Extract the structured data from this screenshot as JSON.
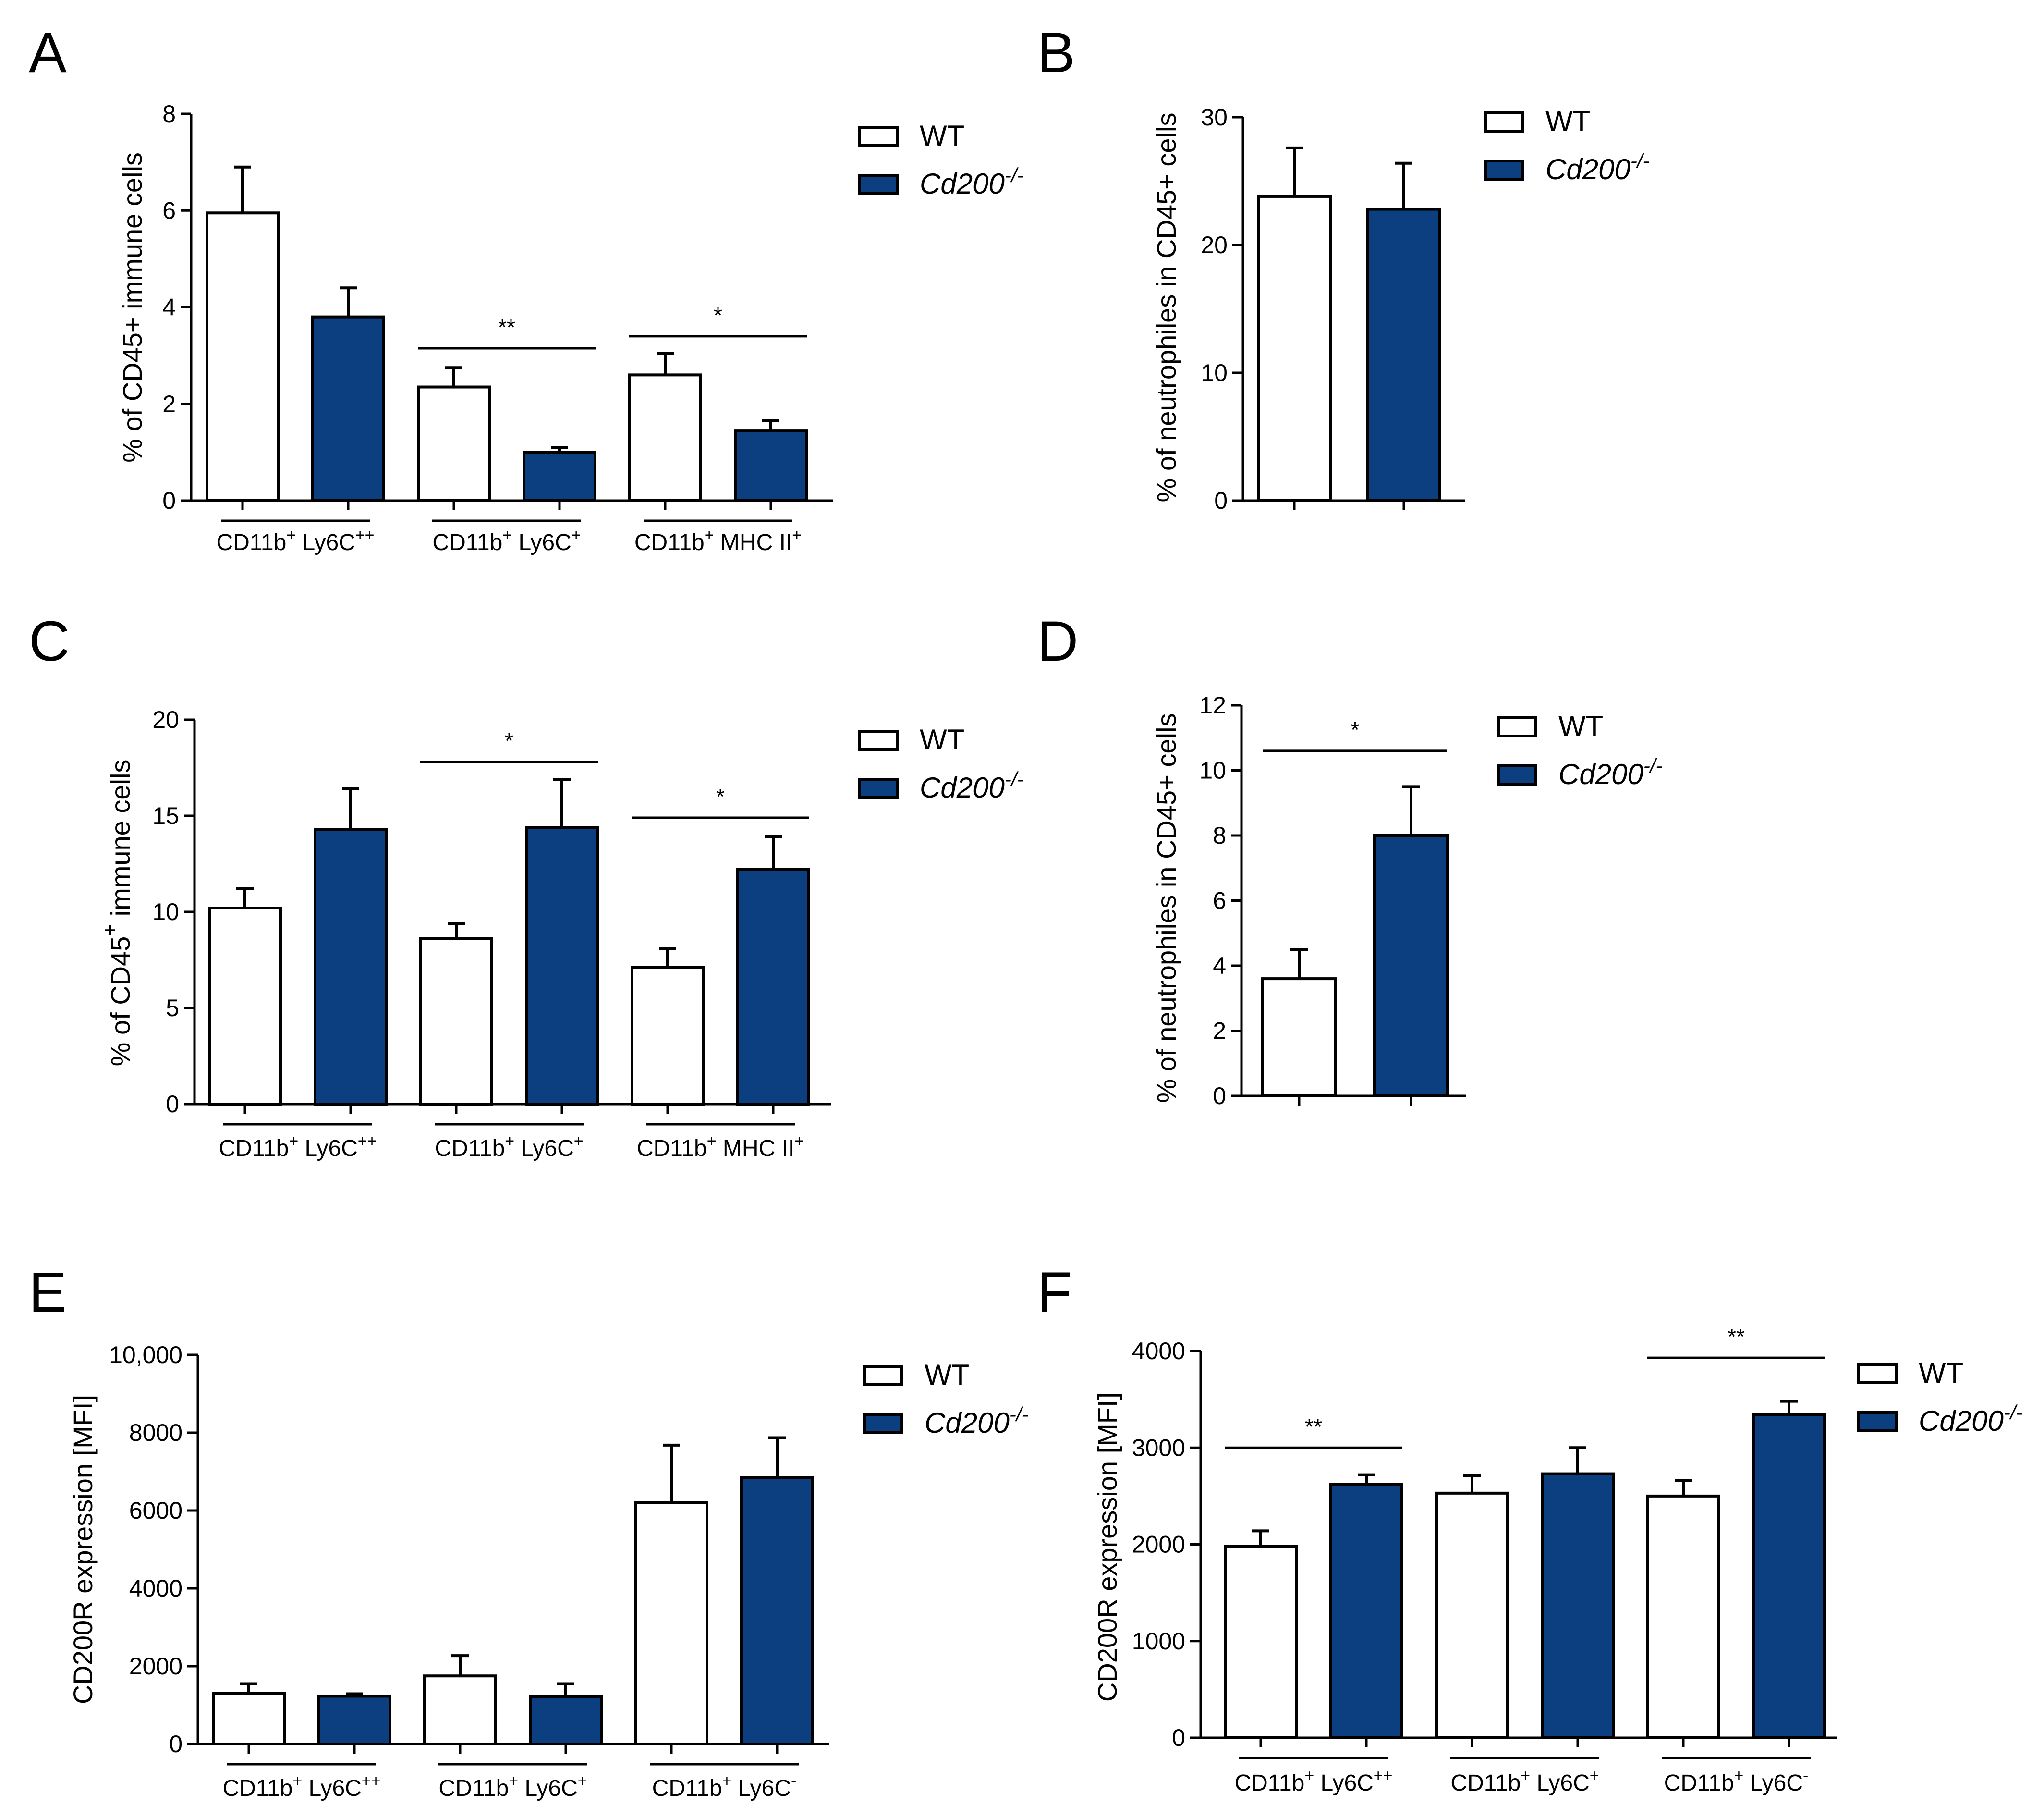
{
  "legend": {
    "wt": "WT",
    "ko": "Cd200",
    "ko_sup": "-/-"
  },
  "colors": {
    "wt_fill": "#ffffff",
    "ko_fill": "#0b3f7f",
    "stroke": "#000000"
  },
  "chart_data": [
    {
      "panel": "A",
      "type": "bar",
      "ylabel": "% of CD45+ immune cells",
      "ylim": [
        0,
        8
      ],
      "yticks": [
        "0",
        "2",
        "4",
        "6",
        "8"
      ],
      "categories": [
        {
          "base": "CD11b",
          "sup1": "+",
          "mid": " Ly6C",
          "sup2": "++"
        },
        {
          "base": "CD11b",
          "sup1": "+",
          "mid": " Ly6C",
          "sup2": "+"
        },
        {
          "base": "CD11b",
          "sup1": "+",
          "mid": " MHC II",
          "sup2": "+"
        }
      ],
      "series": [
        {
          "values": [
            5.95,
            2.35,
            2.6
          ],
          "errors": [
            0.95,
            0.4,
            0.45
          ]
        },
        {
          "values": [
            3.8,
            1.0,
            1.45
          ],
          "errors": [
            0.6,
            0.1,
            0.2
          ]
        }
      ],
      "significance": [
        {
          "group": 1,
          "label": "**",
          "y": 3.15
        },
        {
          "group": 2,
          "label": "*",
          "y": 3.4
        }
      ]
    },
    {
      "panel": "B",
      "type": "bar",
      "ylabel": "% of neutrophiles in CD45+ cells",
      "ylim": [
        0,
        30
      ],
      "yticks": [
        "0",
        "10",
        "20",
        "30"
      ],
      "series": [
        {
          "values": [
            23.8
          ],
          "errors": [
            3.8
          ]
        },
        {
          "values": [
            22.8
          ],
          "errors": [
            3.6
          ]
        }
      ]
    },
    {
      "panel": "C",
      "type": "bar",
      "ylabel_pre": "% of CD45",
      "ylabel_sup": "+",
      "ylabel_post": " immune cells",
      "ylim": [
        0,
        20
      ],
      "yticks": [
        "0",
        "5",
        "10",
        "15",
        "20"
      ],
      "categories": [
        {
          "base": "CD11b",
          "sup1": "+",
          "mid": " Ly6C",
          "sup2": "++"
        },
        {
          "base": "CD11b",
          "sup1": "+",
          "mid": " Ly6C",
          "sup2": "+"
        },
        {
          "base": "CD11b",
          "sup1": "+",
          "mid": " MHC II",
          "sup2": "+"
        }
      ],
      "series": [
        {
          "values": [
            10.2,
            8.6,
            7.1
          ],
          "errors": [
            1.0,
            0.8,
            1.0
          ]
        },
        {
          "values": [
            14.3,
            14.4,
            12.2
          ],
          "errors": [
            2.1,
            2.5,
            1.7
          ]
        }
      ],
      "significance": [
        {
          "group": 1,
          "label": "*",
          "y": 17.8
        },
        {
          "group": 2,
          "label": "*",
          "y": 14.9
        }
      ]
    },
    {
      "panel": "D",
      "type": "bar",
      "ylabel": "% of neutrophiles in CD45+ cells",
      "ylim": [
        0,
        12
      ],
      "yticks": [
        "0",
        "2",
        "4",
        "6",
        "8",
        "10",
        "12"
      ],
      "series": [
        {
          "values": [
            3.6
          ],
          "errors": [
            0.9
          ]
        },
        {
          "values": [
            8.0
          ],
          "errors": [
            1.5
          ]
        }
      ],
      "significance": [
        {
          "label": "*",
          "y": 10.6
        }
      ]
    },
    {
      "panel": "E",
      "type": "bar",
      "ylabel": "CD200R expression [MFI]",
      "ylim": [
        0,
        10000
      ],
      "yticks": [
        "0",
        "2000",
        "4000",
        "6000",
        "8000",
        "10,000"
      ],
      "categories": [
        {
          "base": "CD11b",
          "sup1": "+",
          "mid": " Ly6C",
          "sup2": "++"
        },
        {
          "base": "CD11b",
          "sup1": "+",
          "mid": " Ly6C",
          "sup2": "+"
        },
        {
          "base": "CD11b",
          "sup1": "+",
          "mid": " Ly6C",
          "sup2": "-"
        }
      ],
      "series": [
        {
          "values": [
            1300,
            1750,
            6200
          ],
          "errors": [
            250,
            520,
            1480
          ]
        },
        {
          "values": [
            1230,
            1220,
            6850
          ],
          "errors": [
            60,
            330,
            1020
          ]
        }
      ]
    },
    {
      "panel": "F",
      "type": "bar",
      "ylabel": "CD200R expression [MFI]",
      "ylim": [
        0,
        4000
      ],
      "yticks": [
        "0",
        "1000",
        "2000",
        "3000",
        "4000"
      ],
      "categories": [
        {
          "base": "CD11b",
          "sup1": "+",
          "mid": " Ly6C",
          "sup2": "++"
        },
        {
          "base": "CD11b",
          "sup1": "+",
          "mid": " Ly6C",
          "sup2": "+"
        },
        {
          "base": "CD11b",
          "sup1": "+",
          "mid": " Ly6C",
          "sup2": "-"
        }
      ],
      "series": [
        {
          "values": [
            1980,
            2530,
            2500
          ],
          "errors": [
            160,
            180,
            160
          ]
        },
        {
          "values": [
            2620,
            2730,
            3340
          ],
          "errors": [
            100,
            270,
            140
          ]
        }
      ],
      "significance": [
        {
          "group": 0,
          "label": "**",
          "y": 3000
        },
        {
          "group": 2,
          "label": "**",
          "y": 3930
        }
      ]
    }
  ]
}
